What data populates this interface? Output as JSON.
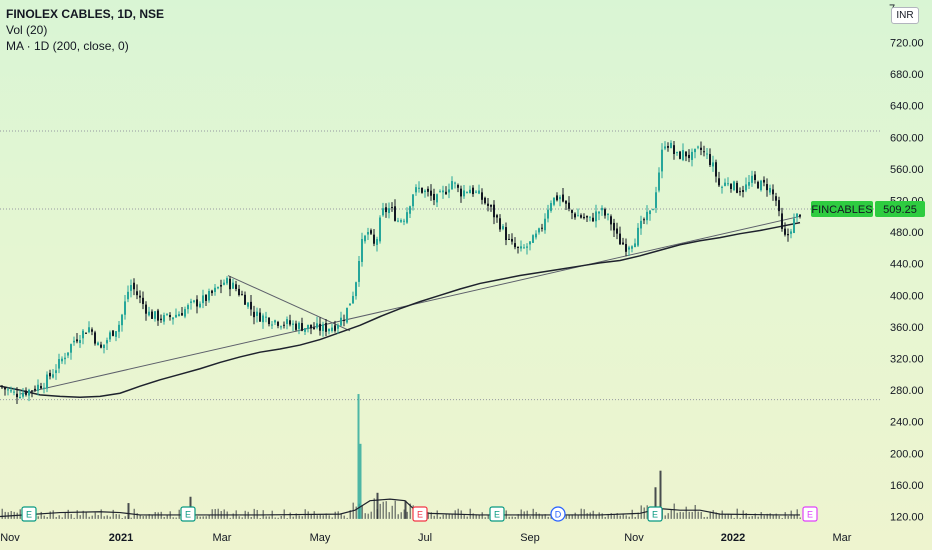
{
  "legend": {
    "title": "FINOLEX CABLES, 1D, NSE",
    "line2": "Vol (20)",
    "line3": "MA · 1D (200, close, 0)"
  },
  "currency": "INR",
  "price_tag": {
    "symbol": "FINCABLES",
    "price": "509.25",
    "color": "#2ecc40"
  },
  "colors": {
    "up": "#26a69a",
    "down": "#131722",
    "ma": "#1e222d",
    "trend": "#5d606b",
    "volume": "#1e222d",
    "dotted": "#9598a1"
  },
  "chart_data": {
    "type": "candlestick",
    "ylim": [
      105,
      750
    ],
    "y_ticks": [
      "720.00",
      "680.00",
      "640.00",
      "600.00",
      "560.00",
      "520.00",
      "480.00",
      "440.00",
      "400.00",
      "360.00",
      "320.00",
      "280.00",
      "240.00",
      "200.00",
      "160.00",
      "120.00"
    ],
    "top_tick_label": "7",
    "x_ticks": [
      {
        "label": "Nov",
        "bold": false
      },
      {
        "label": "2021",
        "bold": true
      },
      {
        "label": "Mar",
        "bold": false
      },
      {
        "label": "May",
        "bold": false
      },
      {
        "label": "Jul",
        "bold": false
      },
      {
        "label": "Sep",
        "bold": false
      },
      {
        "label": "Nov",
        "bold": false
      },
      {
        "label": "2022",
        "bold": true
      },
      {
        "label": "Mar",
        "bold": false
      }
    ],
    "price_path": [
      [
        0,
        285
      ],
      [
        15,
        275
      ],
      [
        30,
        280
      ],
      [
        45,
        290
      ],
      [
        60,
        315
      ],
      [
        75,
        345
      ],
      [
        90,
        360
      ],
      [
        100,
        330
      ],
      [
        110,
        350
      ],
      [
        120,
        365
      ],
      [
        130,
        415
      ],
      [
        140,
        395
      ],
      [
        150,
        375
      ],
      [
        165,
        370
      ],
      [
        180,
        378
      ],
      [
        195,
        390
      ],
      [
        205,
        395
      ],
      [
        215,
        405
      ],
      [
        225,
        418
      ],
      [
        235,
        410
      ],
      [
        245,
        395
      ],
      [
        255,
        375
      ],
      [
        265,
        372
      ],
      [
        275,
        368
      ],
      [
        285,
        365
      ],
      [
        295,
        362
      ],
      [
        305,
        360
      ],
      [
        315,
        358
      ],
      [
        325,
        358
      ],
      [
        335,
        362
      ],
      [
        345,
        375
      ],
      [
        355,
        410
      ],
      [
        360,
        460
      ],
      [
        368,
        480
      ],
      [
        375,
        460
      ],
      [
        382,
        505
      ],
      [
        390,
        510
      ],
      [
        398,
        495
      ],
      [
        405,
        500
      ],
      [
        413,
        530
      ],
      [
        420,
        535
      ],
      [
        428,
        528
      ],
      [
        436,
        520
      ],
      [
        444,
        530
      ],
      [
        452,
        545
      ],
      [
        460,
        530
      ],
      [
        470,
        535
      ],
      [
        480,
        525
      ],
      [
        490,
        510
      ],
      [
        500,
        490
      ],
      [
        510,
        465
      ],
      [
        520,
        455
      ],
      [
        530,
        465
      ],
      [
        540,
        480
      ],
      [
        550,
        520
      ],
      [
        560,
        525
      ],
      [
        570,
        505
      ],
      [
        580,
        500
      ],
      [
        590,
        495
      ],
      [
        600,
        508
      ],
      [
        610,
        495
      ],
      [
        618,
        470
      ],
      [
        626,
        462
      ],
      [
        634,
        470
      ],
      [
        644,
        495
      ],
      [
        652,
        505
      ],
      [
        658,
        550
      ],
      [
        664,
        595
      ],
      [
        670,
        590
      ],
      [
        676,
        575
      ],
      [
        684,
        580
      ],
      [
        692,
        575
      ],
      [
        700,
        585
      ],
      [
        708,
        575
      ],
      [
        714,
        560
      ],
      [
        720,
        535
      ],
      [
        728,
        545
      ],
      [
        736,
        535
      ],
      [
        744,
        535
      ],
      [
        752,
        545
      ],
      [
        760,
        540
      ],
      [
        768,
        538
      ],
      [
        776,
        520
      ],
      [
        782,
        480
      ],
      [
        786,
        470
      ],
      [
        792,
        490
      ],
      [
        800,
        505
      ]
    ],
    "ma_path": [
      [
        0,
        285
      ],
      [
        20,
        280
      ],
      [
        40,
        274
      ],
      [
        60,
        272
      ],
      [
        80,
        271
      ],
      [
        100,
        272
      ],
      [
        120,
        276
      ],
      [
        140,
        285
      ],
      [
        160,
        293
      ],
      [
        180,
        300
      ],
      [
        200,
        307
      ],
      [
        220,
        315
      ],
      [
        240,
        322
      ],
      [
        260,
        328
      ],
      [
        280,
        332
      ],
      [
        300,
        337
      ],
      [
        320,
        344
      ],
      [
        340,
        353
      ],
      [
        360,
        362
      ],
      [
        380,
        373
      ],
      [
        400,
        383
      ],
      [
        420,
        392
      ],
      [
        440,
        400
      ],
      [
        460,
        408
      ],
      [
        480,
        415
      ],
      [
        500,
        420
      ],
      [
        520,
        425
      ],
      [
        540,
        429
      ],
      [
        560,
        433
      ],
      [
        580,
        437
      ],
      [
        600,
        441
      ],
      [
        620,
        444
      ],
      [
        640,
        450
      ],
      [
        660,
        457
      ],
      [
        680,
        464
      ],
      [
        700,
        469
      ],
      [
        720,
        473
      ],
      [
        740,
        478
      ],
      [
        760,
        482
      ],
      [
        780,
        487
      ],
      [
        800,
        492
      ]
    ],
    "trendlines": [
      {
        "from": [
          20,
          275
        ],
        "to": [
          800,
          500
        ]
      },
      {
        "from": [
          228,
          425
        ],
        "to": [
          350,
          355
        ]
      }
    ],
    "volume_spikes": [
      {
        "x": 358,
        "value": 275
      },
      {
        "x": 360,
        "value": 212
      },
      {
        "x": 660,
        "value": 178
      },
      {
        "x": 655,
        "value": 157
      },
      {
        "x": 377,
        "value": 150
      },
      {
        "x": 190,
        "value": 145
      },
      {
        "x": 128,
        "value": 137
      },
      {
        "x": 405,
        "value": 140
      }
    ],
    "volume_ma": [
      [
        0,
        120
      ],
      [
        60,
        125
      ],
      [
        100,
        126
      ],
      [
        120,
        125
      ],
      [
        140,
        122
      ],
      [
        200,
        122
      ],
      [
        260,
        122
      ],
      [
        340,
        123
      ],
      [
        355,
        128
      ],
      [
        370,
        140
      ],
      [
        390,
        142
      ],
      [
        405,
        140
      ],
      [
        415,
        128
      ],
      [
        430,
        124
      ],
      [
        480,
        122
      ],
      [
        540,
        122
      ],
      [
        600,
        122
      ],
      [
        640,
        124
      ],
      [
        660,
        130
      ],
      [
        680,
        128
      ],
      [
        700,
        128
      ],
      [
        720,
        123
      ],
      [
        780,
        122
      ],
      [
        800,
        122
      ]
    ],
    "baseline_value": 117,
    "dotted_levels": [
      608,
      509.25,
      268
    ],
    "events": [
      {
        "x": 29,
        "label": "E",
        "color": "#089981"
      },
      {
        "x": 188,
        "label": "E",
        "color": "#089981"
      },
      {
        "x": 420,
        "label": "E",
        "color": "#f23645"
      },
      {
        "x": 497,
        "label": "E",
        "color": "#089981"
      },
      {
        "x": 558,
        "label": "D",
        "color": "#2962ff"
      },
      {
        "x": 655,
        "label": "E",
        "color": "#089981"
      },
      {
        "x": 810,
        "label": "E",
        "color": "#e040fb"
      }
    ]
  }
}
